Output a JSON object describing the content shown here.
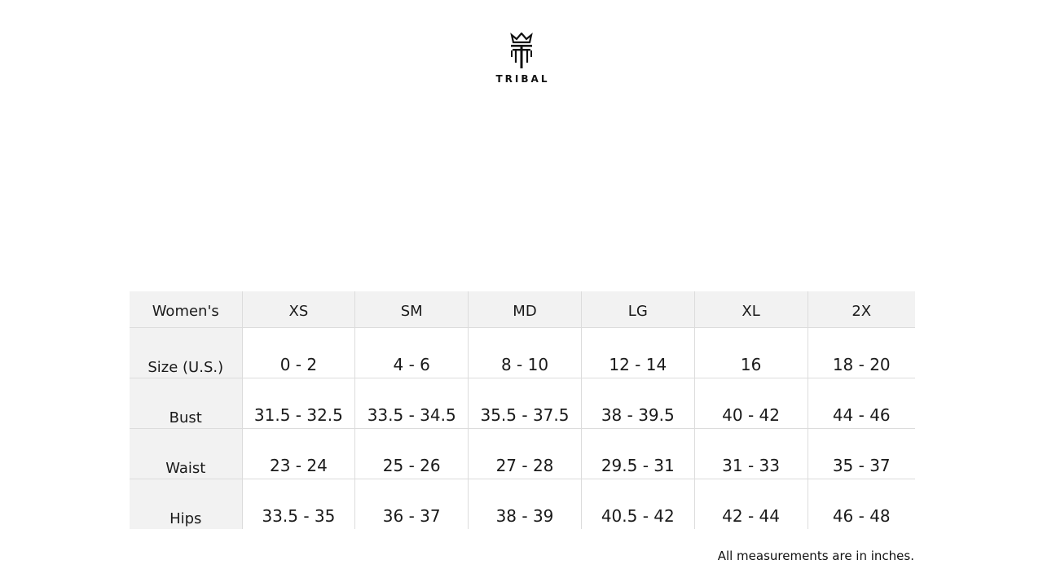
{
  "brand": {
    "name": "TRIBAL",
    "logo_icon": "crown-t-logo-icon"
  },
  "table": {
    "headers": [
      "Women's",
      "XS",
      "SM",
      "MD",
      "LG",
      "XL",
      "2X"
    ],
    "rows": [
      {
        "label": "Size (U.S.)",
        "values": [
          "0 - 2",
          "4 - 6",
          "8 - 10",
          "12 - 14",
          "16",
          "18 - 20"
        ]
      },
      {
        "label": "Bust",
        "values": [
          "31.5 - 32.5",
          "33.5 - 34.5",
          "35.5 - 37.5",
          "38 - 39.5",
          "40 - 42",
          "44 - 46"
        ]
      },
      {
        "label": "Waist",
        "values": [
          "23 - 24",
          "25 - 26",
          "27 - 28",
          "29.5 - 31",
          "31 - 33",
          "35 - 37"
        ]
      },
      {
        "label": "Hips",
        "values": [
          "33.5 - 35",
          "36 - 37",
          "38 - 39",
          "40.5 - 42",
          "42 - 44",
          "46 - 48"
        ]
      }
    ]
  },
  "footnote": "All measurements are in inches."
}
